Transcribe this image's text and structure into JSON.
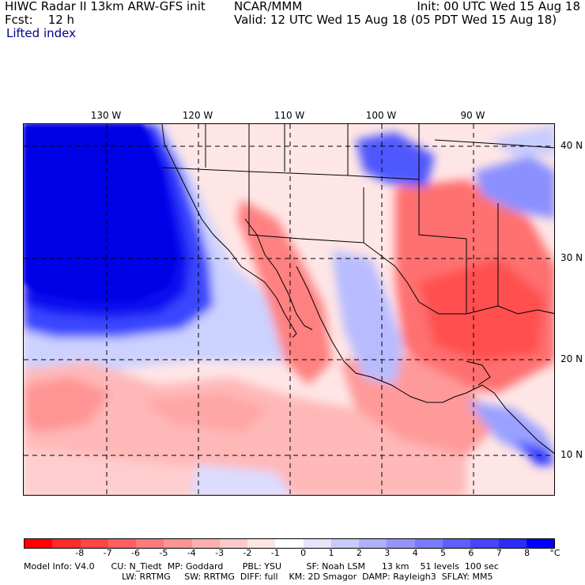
{
  "header": {
    "title": "HIWC Radar II 13km ARW-GFS init",
    "source": "NCAR/MMM",
    "forecast": "Fcst:    12 h",
    "field": "Lifted index",
    "init": "Init: 00 UTC Wed 15 Aug 18",
    "valid": "Valid: 12 UTC Wed 15 Aug 18 (05 PDT Wed 15 Aug 18)"
  },
  "longitude_labels": [
    "130 W",
    "120 W",
    "110 W",
    "100 W",
    "90 W"
  ],
  "latitude_labels": [
    "40 N",
    "30 N",
    "20 N",
    "10 N"
  ],
  "colorbar": {
    "labels": [
      "-8",
      "-7",
      "-6",
      "-5",
      "-4",
      "-3",
      "-2",
      "-1",
      "0",
      "1",
      "2",
      "3",
      "4",
      "5",
      "6",
      "7",
      "8"
    ],
    "unit": "°C",
    "colors": [
      "#ff0000",
      "#ff2b2b",
      "#ff4545",
      "#ff5f5f",
      "#ff7a7a",
      "#ff9494",
      "#ffafaf",
      "#ffc9c9",
      "#ffe4e4",
      "#ffffff",
      "#e4e4ff",
      "#c9c9ff",
      "#afafff",
      "#9494ff",
      "#7a7aff",
      "#5f5fff",
      "#4545ff",
      "#2b2bff",
      "#0000ff"
    ]
  },
  "footer": {
    "line1": "Model Info: V4.0      CU: N_Tiedt  MP: Goddard       PBL: YSU         SF: Noah LSM      13 km    51 levels  100 sec",
    "line2": "LW: RRTMG     SW: RRTMG  DIFF: full    KM: 2D Smagor  DAMP: Rayleigh3  SFLAY: MM5"
  }
}
